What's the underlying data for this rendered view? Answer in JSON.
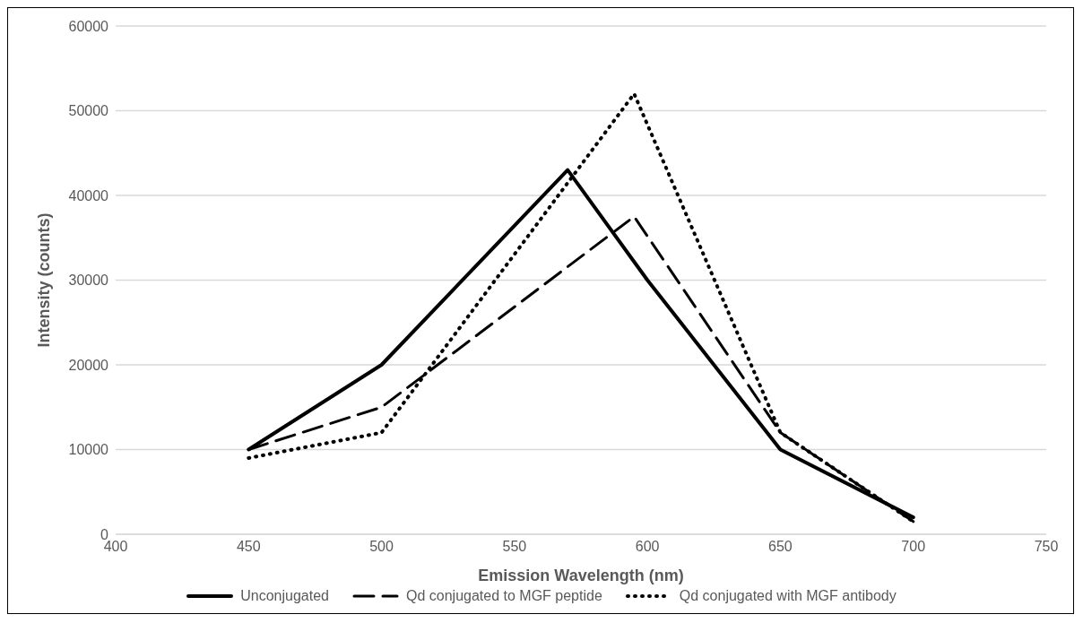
{
  "chart_data": {
    "type": "line",
    "xlabel": "Emission Wavelength (nm)",
    "ylabel": "Intensity (counts)",
    "xlim": [
      400,
      750
    ],
    "xticks": [
      400,
      450,
      500,
      550,
      600,
      650,
      700,
      750
    ],
    "ylim": [
      0,
      60000
    ],
    "yticks": [
      0,
      10000,
      20000,
      30000,
      40000,
      50000,
      60000
    ],
    "grid": "y",
    "legend": "bottom",
    "marker": "none",
    "series": [
      {
        "name": "Unconjugated",
        "color": "#000000",
        "line_style": "solid",
        "x": [
          450,
          500,
          570,
          600,
          650,
          700
        ],
        "values": [
          10000,
          20000,
          43000,
          30000,
          10000,
          2000
        ]
      },
      {
        "name": "Qd conjugated to MGF peptide",
        "color": "#000000",
        "line_style": "dashed",
        "x": [
          450,
          500,
          595,
          650,
          700
        ],
        "values": [
          10000,
          15000,
          37500,
          12000,
          1500
        ]
      },
      {
        "name": "Qd conjugated with MGF antibody",
        "color": "#000000",
        "line_style": "dotted",
        "x": [
          450,
          500,
          595,
          650,
          700
        ],
        "values": [
          9000,
          12000,
          52000,
          12000,
          1500
        ]
      }
    ]
  }
}
